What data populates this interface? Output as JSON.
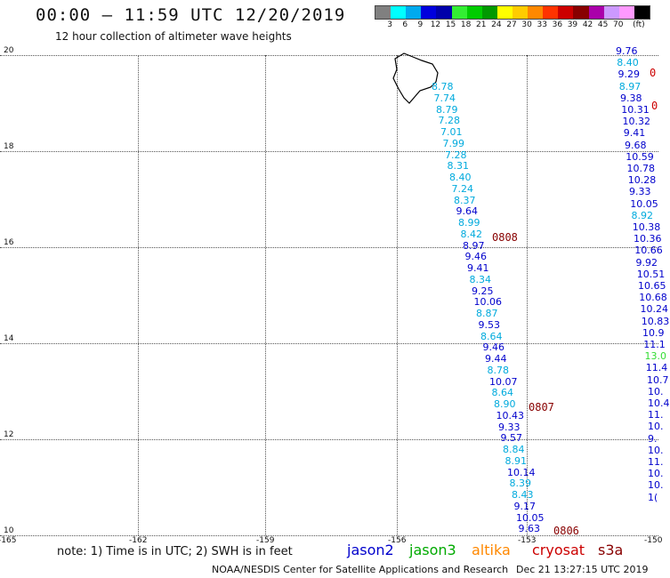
{
  "title": "00:00 – 11:59 UTC 12/20/2019",
  "subtitle": "12 hour collection of altimeter wave heights",
  "legend": {
    "colors": [
      "#808080",
      "#00ffff",
      "#00aaee",
      "#0000dd",
      "#0000aa",
      "#33ee33",
      "#00cc00",
      "#009900",
      "#ffff00",
      "#ffcc00",
      "#ff8800",
      "#ff3300",
      "#cc0000",
      "#880000",
      "#aa00aa",
      "#cc99ff",
      "#ff99ff",
      "#000000"
    ],
    "labels": [
      "3",
      "6",
      "9",
      "12",
      "15",
      "18",
      "21",
      "24",
      "27",
      "30",
      "33",
      "36",
      "39",
      "42",
      "45",
      "70",
      "(ft)"
    ]
  },
  "y_axis": [
    "20",
    "18",
    "16",
    "14",
    "12",
    "10"
  ],
  "x_axis": [
    "-165",
    "-162",
    "-159",
    "-156",
    "-153",
    "-150"
  ],
  "track_a": {
    "values": [
      "8.78",
      "7.74",
      "8.79",
      "7.28",
      "7.01",
      "7.99",
      "7.28",
      "8.31",
      "8.40",
      "7.24",
      "8.37",
      "9.64",
      "8.99",
      "8.42",
      "8.97",
      "9.46",
      "9.41",
      "8.34",
      "9.25",
      "10.06",
      "8.87",
      "9.53",
      "8.64",
      "9.46",
      "9.44",
      "8.78",
      "10.07",
      "8.64",
      "8.90",
      "10.43",
      "9.33",
      "9.57",
      "8.84",
      "8.91",
      "10.14",
      "8.39",
      "8.43",
      "9.17",
      "10.05",
      "9.63"
    ],
    "colors": [
      "light",
      "light",
      "light",
      "light",
      "light",
      "light",
      "light",
      "light",
      "light",
      "light",
      "light",
      "blue",
      "light",
      "light",
      "blue",
      "blue",
      "blue",
      "light",
      "blue",
      "blue",
      "light",
      "blue",
      "light",
      "blue",
      "blue",
      "light",
      "blue",
      "light",
      "light",
      "blue",
      "blue",
      "blue",
      "light",
      "light",
      "blue",
      "light",
      "light",
      "blue",
      "blue",
      "blue"
    ]
  },
  "track_b": {
    "values": [
      "9.76",
      "8.40",
      "9.29",
      "8.97",
      "9.38",
      "10.31",
      "10.32",
      "9.41",
      "9.68",
      "10.59",
      "10.78",
      "10.28",
      "9.33",
      "10.05",
      "8.92",
      "10.38",
      "10.36",
      "10.66",
      "9.92",
      "10.51",
      "10.65",
      "10.68",
      "10.24",
      "10.83",
      "10.9",
      "11.1",
      "13.0",
      "11.4",
      "10.7",
      "10.",
      "10.4",
      "11.",
      "10.",
      "9.",
      "10.",
      "11.",
      "10.",
      "10.",
      "1("
    ],
    "colors": [
      "blue",
      "light",
      "blue",
      "light",
      "blue",
      "blue",
      "blue",
      "blue",
      "blue",
      "blue",
      "blue",
      "blue",
      "blue",
      "blue",
      "light",
      "blue",
      "blue",
      "blue",
      "blue",
      "blue",
      "blue",
      "blue",
      "blue",
      "blue",
      "blue",
      "blue",
      "green",
      "blue",
      "blue",
      "blue",
      "blue",
      "blue",
      "blue",
      "blue",
      "blue",
      "blue",
      "blue",
      "blue",
      "blue"
    ]
  },
  "time_labels": [
    "0808",
    "0807",
    "0806",
    "0",
    "0"
  ],
  "note": "note:  1) Time is in UTC;  2) SWH is in feet",
  "satellites": {
    "jason2": "jason2",
    "jason3": "jason3",
    "altika": "altika",
    "cryosat": "cryosat",
    "s3a": "s3a"
  },
  "credit": "NOAA/NESDIS Center for Satellite Applications and Research",
  "timestamp": "Dec 21 13:27:15 UTC 2019"
}
